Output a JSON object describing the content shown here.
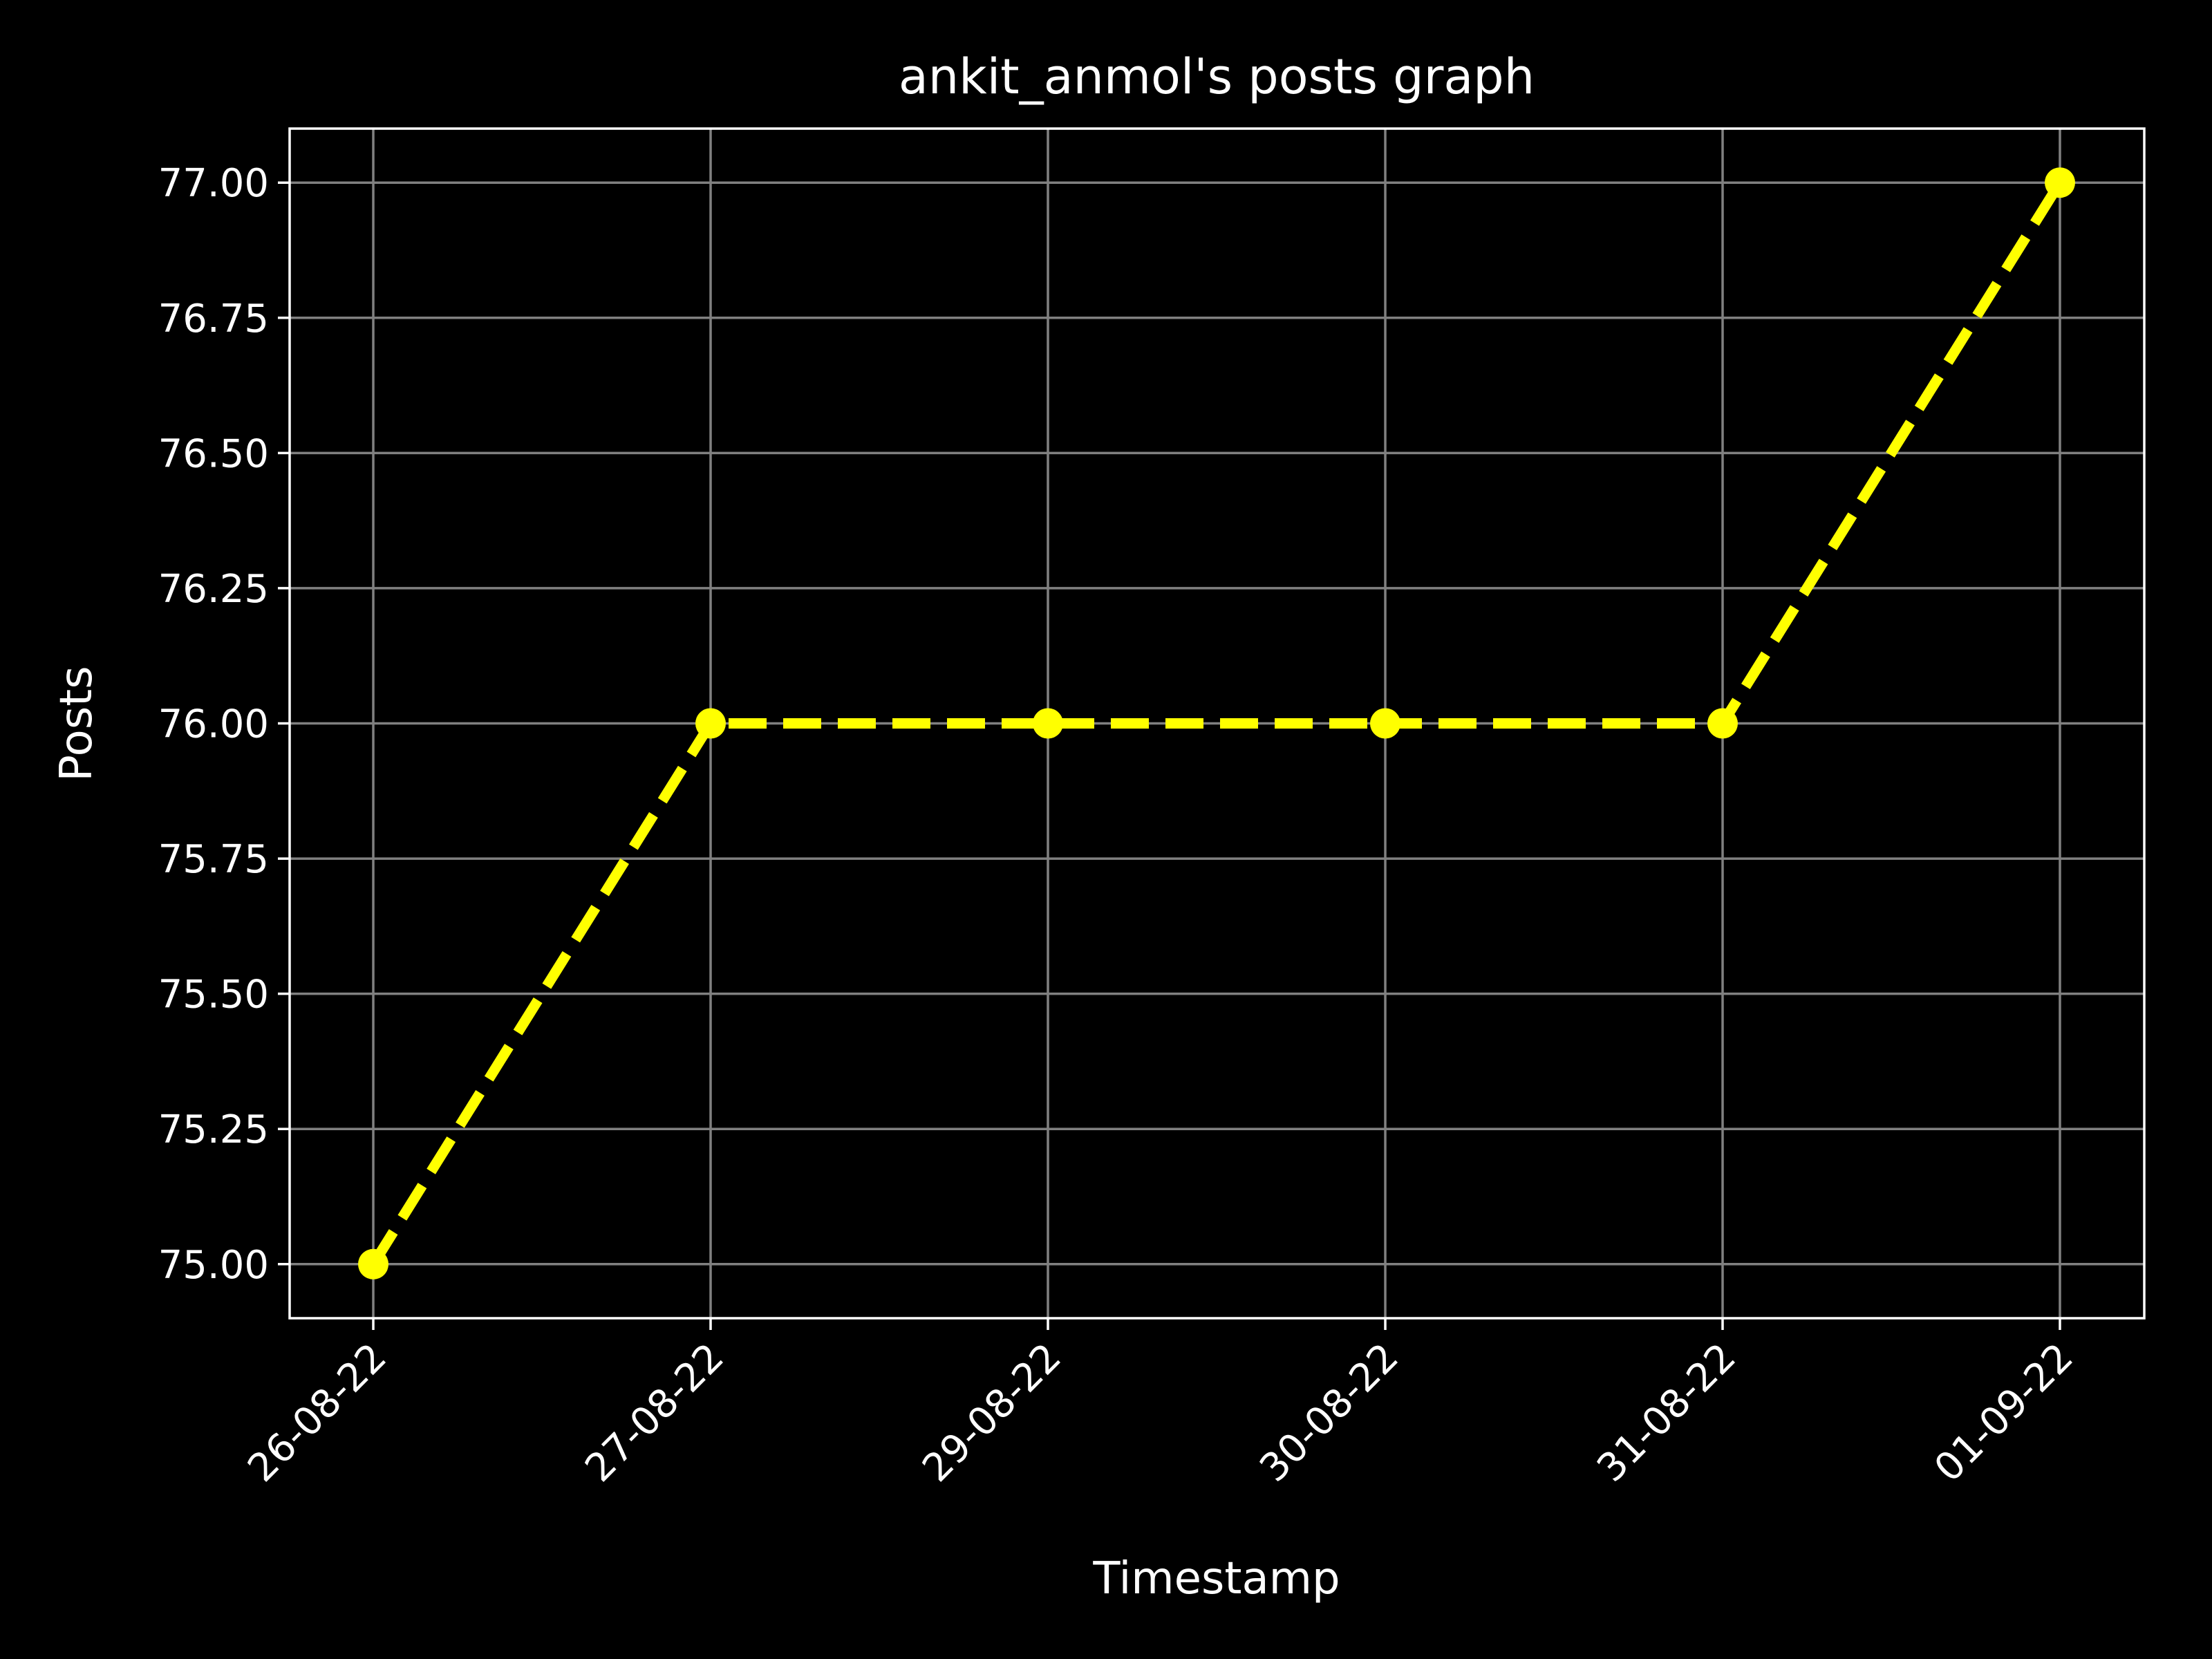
{
  "chart_data": {
    "type": "line",
    "title": "ankit_anmol's posts graph",
    "xlabel": "Timestamp",
    "ylabel": "Posts",
    "categories": [
      "26-08-22",
      "27-08-22",
      "29-08-22",
      "30-08-22",
      "31-08-22",
      "01-09-22"
    ],
    "series": [
      {
        "values": [
          75,
          76,
          76,
          76,
          76,
          77
        ]
      }
    ],
    "ylim": [
      74.9,
      77.1
    ],
    "yticks": [
      "75.00",
      "75.25",
      "75.50",
      "75.75",
      "76.00",
      "76.25",
      "76.50",
      "76.75",
      "77.00"
    ],
    "ytick_values": [
      75,
      75.25,
      75.5,
      75.75,
      76,
      76.25,
      76.5,
      76.75,
      77
    ],
    "grid": true,
    "line_style": "dashed",
    "marker": "circle",
    "colors": {
      "background": "#000000",
      "line": "#ffff00",
      "grid": "#808080",
      "axes": "#ffffff",
      "text": "#ffffff"
    }
  }
}
